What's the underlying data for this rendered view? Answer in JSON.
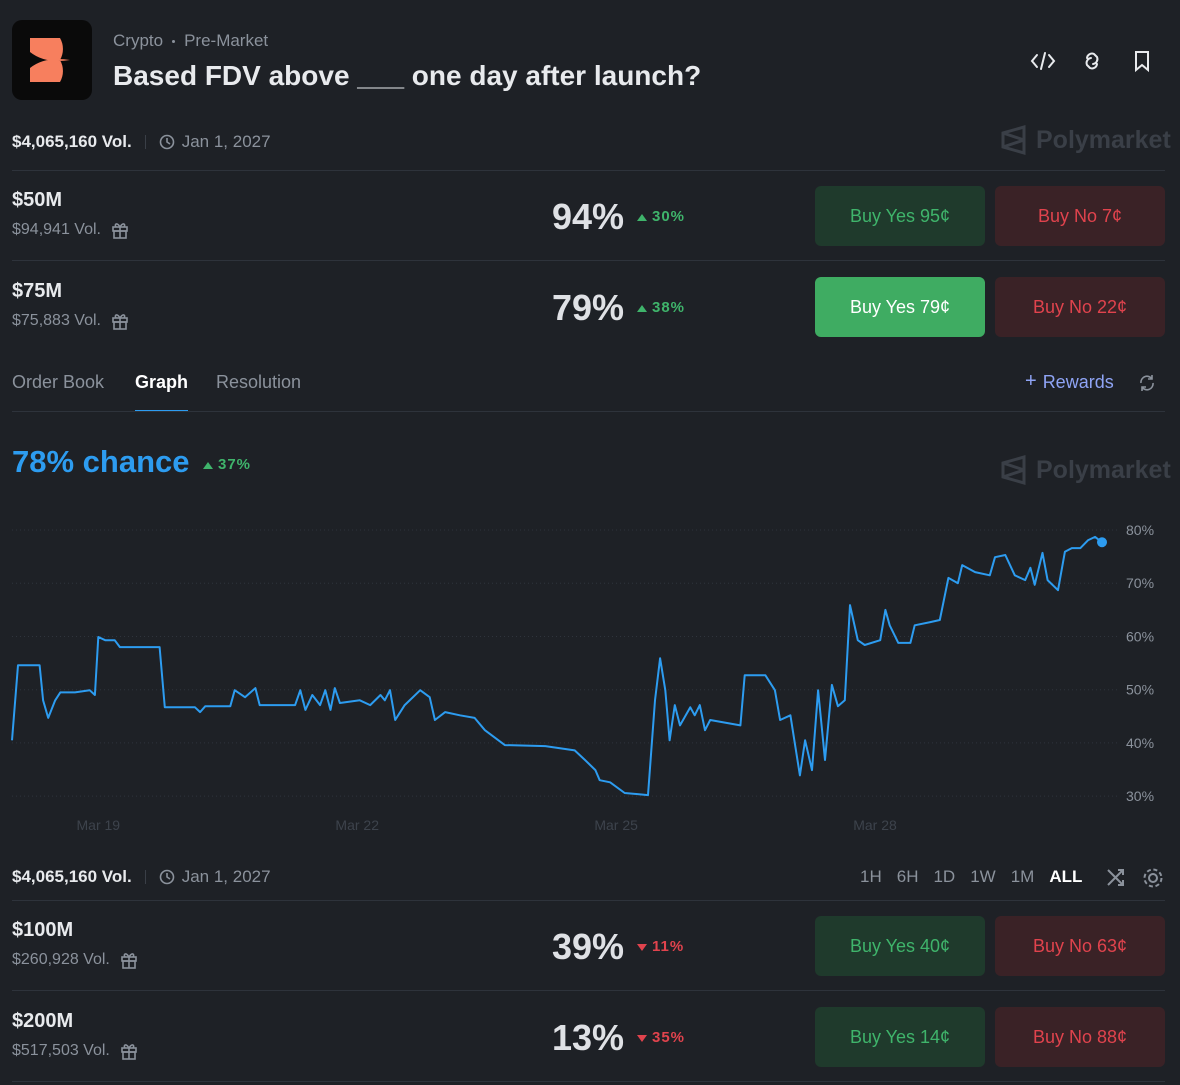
{
  "header": {
    "category": "Crypto",
    "subcategory": "Pre-Market",
    "title": "Based FDV above ___ one day after launch?"
  },
  "summary": {
    "volume": "$4,065,160 Vol.",
    "end_date": "Jan 1, 2027",
    "brand": "Polymarket"
  },
  "markets_top": [
    {
      "name": "$50M",
      "volume": "$94,941 Vol.",
      "chance": "94%",
      "change": "30%",
      "direction": "up",
      "buy_yes": "Buy Yes 95¢",
      "buy_no": "Buy No 7¢",
      "highlighted": false
    },
    {
      "name": "$75M",
      "volume": "$75,883 Vol.",
      "chance": "79%",
      "change": "38%",
      "direction": "up",
      "buy_yes": "Buy Yes 79¢",
      "buy_no": "Buy No 22¢",
      "highlighted": true
    }
  ],
  "tabs": {
    "items": [
      "Order Book",
      "Graph",
      "Resolution"
    ],
    "active": 1,
    "rewards": "Rewards"
  },
  "chart_panel": {
    "headline": "78% chance",
    "change": "37%",
    "direction": "up",
    "brand": "Polymarket"
  },
  "chart_data": {
    "type": "line",
    "x": [
      18.0,
      18.07,
      18.32,
      18.36,
      18.42,
      18.5,
      18.56,
      18.73,
      18.9,
      18.96,
      19.0,
      19.08,
      19.19,
      19.25,
      19.71,
      19.77,
      20.12,
      20.18,
      20.24,
      20.53,
      20.58,
      20.7,
      20.82,
      20.87,
      21.28,
      21.34,
      21.4,
      21.48,
      21.57,
      21.63,
      21.69,
      21.74,
      21.8,
      22.03,
      22.15,
      22.27,
      22.32,
      22.38,
      22.44,
      22.55,
      22.73,
      22.84,
      22.9,
      23.02,
      23.19,
      23.36,
      23.48,
      23.71,
      24.18,
      24.52,
      24.64,
      24.76,
      24.81,
      24.93,
      25.1,
      25.37,
      25.45,
      25.51,
      25.57,
      25.62,
      25.68,
      25.74,
      25.86,
      25.91,
      25.97,
      26.03,
      26.09,
      26.44,
      26.49,
      26.73,
      26.84,
      26.9,
      27.02,
      27.13,
      27.19,
      27.27,
      27.34,
      27.42,
      27.5,
      27.57,
      27.65,
      27.71,
      27.8,
      27.88,
      28.06,
      28.12,
      28.17,
      28.27,
      28.41,
      28.46,
      28.64,
      28.75,
      28.85,
      28.96,
      29.01,
      29.16,
      29.33,
      29.39,
      29.51,
      29.62,
      29.74,
      29.8,
      29.85,
      29.94,
      30.0,
      30.12,
      30.2,
      30.28,
      30.38,
      30.47,
      30.55,
      30.63
    ],
    "series": [
      {
        "name": "$75M",
        "color": "#2d9cf0",
        "values": [
          40.5,
          54.6,
          54.6,
          48.0,
          44.7,
          48.0,
          49.5,
          49.5,
          49.9,
          49.0,
          59.9,
          59.3,
          59.3,
          58.0,
          58.0,
          46.7,
          46.7,
          45.8,
          46.9,
          46.9,
          49.9,
          48.6,
          50.3,
          47.1,
          47.1,
          49.9,
          46.2,
          49.0,
          47.1,
          49.9,
          46.2,
          50.3,
          47.5,
          48.0,
          47.1,
          49.0,
          48.0,
          49.9,
          44.3,
          47.1,
          49.9,
          48.6,
          44.3,
          45.8,
          45.2,
          44.7,
          42.4,
          39.6,
          39.4,
          38.6,
          36.8,
          34.9,
          33.0,
          32.6,
          30.6,
          30.2,
          48.0,
          55.9,
          49.9,
          40.5,
          47.1,
          43.3,
          46.7,
          45.2,
          47.1,
          42.4,
          44.3,
          43.3,
          52.7,
          52.7,
          49.9,
          44.3,
          45.2,
          33.9,
          40.5,
          34.9,
          49.9,
          36.8,
          50.9,
          46.9,
          48.0,
          65.9,
          59.3,
          58.4,
          59.3,
          65.0,
          62.1,
          58.8,
          58.8,
          62.1,
          62.7,
          63.1,
          71.0,
          70.0,
          73.4,
          72.1,
          71.5,
          74.9,
          75.3,
          71.5,
          70.6,
          72.9,
          69.7,
          75.7,
          70.6,
          68.7,
          75.9,
          76.6,
          76.6,
          78.1,
          78.7,
          77.7
        ]
      }
    ],
    "xlim": [
      18,
      30.63
    ],
    "xticks": [
      {
        "value": 19,
        "label": "Mar 19"
      },
      {
        "value": 22,
        "label": "Mar 22"
      },
      {
        "value": 25,
        "label": "Mar 25"
      },
      {
        "value": 28,
        "label": "Mar 28"
      }
    ],
    "ylim": [
      27.4,
      84.7
    ],
    "yticks": [
      {
        "value": 30,
        "label": "30%"
      },
      {
        "value": 40,
        "label": "40%"
      },
      {
        "value": 50,
        "label": "50%"
      },
      {
        "value": 60,
        "label": "60%"
      },
      {
        "value": 70,
        "label": "70%"
      },
      {
        "value": 80,
        "label": "80%"
      }
    ],
    "grid": true
  },
  "footer": {
    "volume": "$4,065,160 Vol.",
    "end_date": "Jan 1, 2027",
    "ranges": [
      "1H",
      "6H",
      "1D",
      "1W",
      "1M",
      "ALL"
    ],
    "active_range": 5
  },
  "markets_bottom": [
    {
      "name": "$100M",
      "volume": "$260,928 Vol.",
      "chance": "39%",
      "change": "11%",
      "direction": "down",
      "buy_yes": "Buy Yes 40¢",
      "buy_no": "Buy No 63¢",
      "highlighted": false
    },
    {
      "name": "$200M",
      "volume": "$517,503 Vol.",
      "chance": "13%",
      "change": "35%",
      "direction": "down",
      "buy_yes": "Buy Yes 14¢",
      "buy_no": "Buy No 88¢",
      "highlighted": false
    }
  ]
}
